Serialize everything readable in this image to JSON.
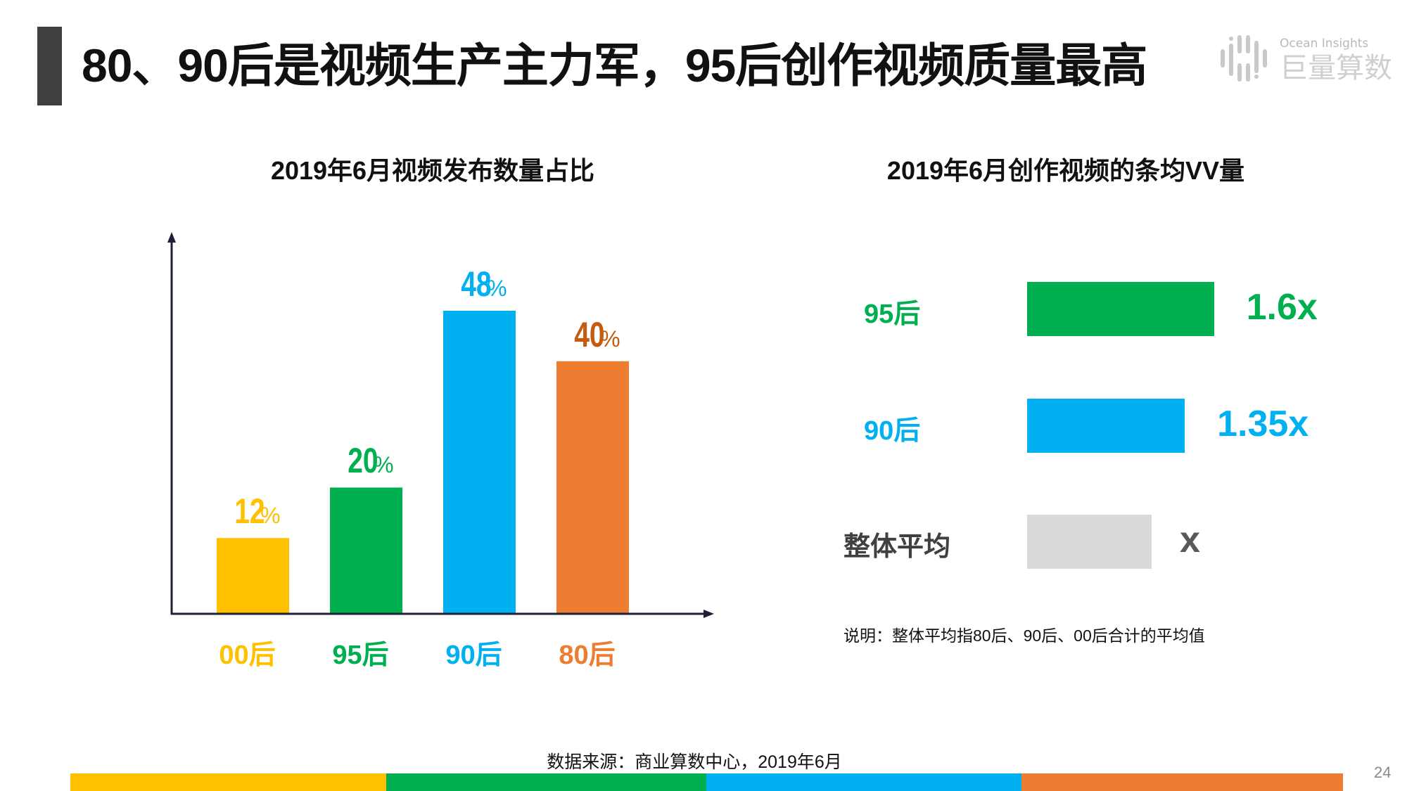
{
  "header": {
    "title": "80、90后是视频生产主力军，95后创作视频质量最高",
    "logo": {
      "en": "Ocean Insights",
      "cn": "巨量算数"
    }
  },
  "colors": {
    "yellow": "#FFC000",
    "green": "#00B050",
    "blue": "#00B0F0",
    "orange": "#ED7D31",
    "gray": "#D9D9D9",
    "orange_label": "#C55A11"
  },
  "chart_data": [
    {
      "type": "bar",
      "title": "2019年6月视频发布数量占比",
      "categories": [
        "00后",
        "95后",
        "90后",
        "80后"
      ],
      "values": [
        12,
        20,
        48,
        40
      ],
      "unit": "%",
      "value_labels": [
        "12",
        "20",
        "48",
        "40"
      ],
      "colors": [
        "#FFC000",
        "#00B050",
        "#00B0F0",
        "#ED7D31"
      ],
      "label_colors": [
        "#FFC000",
        "#00B050",
        "#00B0F0",
        "#C55A11"
      ],
      "grid": false
    },
    {
      "type": "bar",
      "orientation": "horizontal",
      "title": "2019年6月创作视频的条均VV量",
      "categories": [
        "95后",
        "90后",
        "整体平均"
      ],
      "values": [
        1.6,
        1.35,
        1
      ],
      "value_labels": [
        "1.6x",
        "1.35x",
        "x"
      ],
      "colors": [
        "#00B050",
        "#00B0F0",
        "#D9D9D9"
      ],
      "label_colors": [
        "#00B050",
        "#00B0F0",
        "#595959"
      ],
      "grid": false
    }
  ],
  "note": "说明：整体平均指80后、90后、00后合计的平均值",
  "source": "数据来源：商业算数中心，2019年6月",
  "page_number": "24",
  "footer_stripe": [
    "#FFC000",
    "#00B050",
    "#00B0F0",
    "#ED7D31"
  ]
}
